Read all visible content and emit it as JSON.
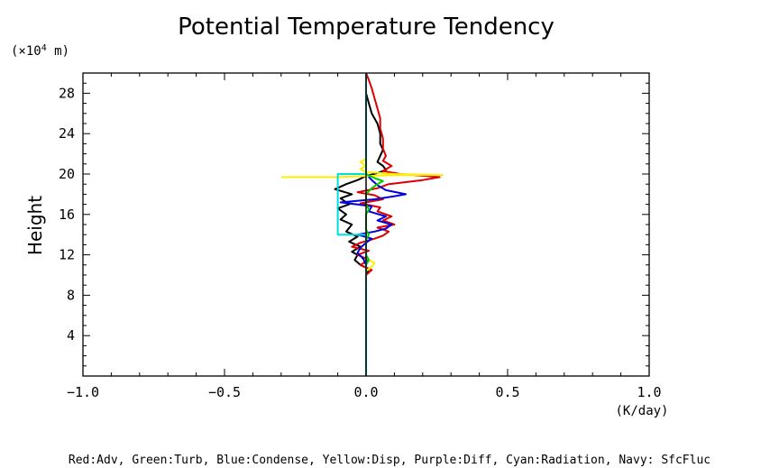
{
  "chart_data": {
    "type": "line",
    "title": "Potential Temperature Tendency",
    "xlabel": "",
    "ylabel": "Height",
    "x_unit": "(K/day)",
    "y_unit_prefix": "(×10",
    "y_unit_exp": "4",
    "y_unit_suffix": " m)",
    "xlim": [
      -1.0,
      1.0
    ],
    "ylim": [
      0,
      30
    ],
    "x_ticks": [
      -1.0,
      -0.5,
      0.0,
      0.5,
      1.0
    ],
    "x_tick_labels": [
      "−1.0",
      "−0.5",
      "0.0",
      "0.5",
      "1.0"
    ],
    "y_ticks": [
      4,
      8,
      12,
      16,
      20,
      24,
      28
    ],
    "y_tick_labels": [
      "4",
      "8",
      "12",
      "16",
      "20",
      "24",
      "28"
    ],
    "grid": false,
    "legend_note": "Red:Adv, Green:Turb, Blue:Condense, Yellow:Disp, Purple:Diff, Cyan:Radiation, Navy: SfcFluc",
    "zero_line_x": 0.0,
    "series": [
      {
        "color": "#000000",
        "points": [
          [
            0,
            0
          ],
          [
            0,
            10
          ],
          [
            0.01,
            10.6
          ],
          [
            -0.02,
            11.0
          ],
          [
            -0.04,
            11.5
          ],
          [
            -0.03,
            12.0
          ],
          [
            -0.05,
            12.3
          ],
          [
            -0.02,
            12.8
          ],
          [
            -0.06,
            13.3
          ],
          [
            -0.03,
            13.8
          ],
          [
            -0.07,
            14.3
          ],
          [
            -0.05,
            15.0
          ],
          [
            -0.09,
            15.5
          ],
          [
            -0.07,
            16.0
          ],
          [
            -0.1,
            16.6
          ],
          [
            -0.06,
            17.0
          ],
          [
            -0.09,
            17.6
          ],
          [
            -0.05,
            18.0
          ],
          [
            -0.11,
            18.5
          ],
          [
            -0.07,
            19.0
          ],
          [
            -0.03,
            19.4
          ],
          [
            0.0,
            19.8
          ],
          [
            0.04,
            20.1
          ],
          [
            0.07,
            20.4
          ],
          [
            0.06,
            20.8
          ],
          [
            0.04,
            21.2
          ],
          [
            0.05,
            21.8
          ],
          [
            0.06,
            22.4
          ],
          [
            0.05,
            23.0
          ],
          [
            0.05,
            24.0
          ],
          [
            0.04,
            25.0
          ],
          [
            0.02,
            26.0
          ],
          [
            0.01,
            27.0
          ],
          [
            0.0,
            28.0
          ],
          [
            0,
            30
          ]
        ]
      },
      {
        "color": "#dd0000",
        "points": [
          [
            0,
            0
          ],
          [
            0,
            10
          ],
          [
            0.02,
            10.5
          ],
          [
            -0.02,
            11.0
          ],
          [
            0.01,
            11.5
          ],
          [
            -0.03,
            12.0
          ],
          [
            0.01,
            12.4
          ],
          [
            -0.05,
            12.8
          ],
          [
            -0.02,
            13.2
          ],
          [
            0.03,
            13.6
          ],
          [
            0.06,
            13.9
          ],
          [
            0.08,
            14.3
          ],
          [
            0.04,
            14.7
          ],
          [
            0.1,
            15.0
          ],
          [
            0.06,
            15.4
          ],
          [
            0.09,
            15.8
          ],
          [
            0.04,
            16.3
          ],
          [
            0.05,
            16.7
          ],
          [
            -0.02,
            17.1
          ],
          [
            0.06,
            17.5
          ],
          [
            0.03,
            17.9
          ],
          [
            -0.03,
            18.2
          ],
          [
            0.04,
            18.6
          ],
          [
            0.08,
            19.0
          ],
          [
            0.2,
            19.4
          ],
          [
            0.26,
            19.7
          ],
          [
            0.12,
            20.0
          ],
          [
            0.06,
            20.3
          ],
          [
            0.09,
            20.8
          ],
          [
            0.06,
            21.3
          ],
          [
            0.07,
            21.8
          ],
          [
            0.06,
            22.5
          ],
          [
            0.06,
            23.5
          ],
          [
            0.05,
            24.5
          ],
          [
            0.05,
            25.5
          ],
          [
            0.04,
            26.5
          ],
          [
            0.03,
            27.5
          ],
          [
            0.02,
            28.5
          ],
          [
            0.01,
            29.3
          ],
          [
            0,
            30
          ]
        ]
      },
      {
        "color": "#0000dd",
        "points": [
          [
            0,
            0
          ],
          [
            0,
            10
          ],
          [
            0.0,
            11.0
          ],
          [
            -0.01,
            11.6
          ],
          [
            -0.03,
            12.2
          ],
          [
            -0.02,
            12.7
          ],
          [
            0.0,
            13.2
          ],
          [
            0.02,
            13.6
          ],
          [
            -0.03,
            14.0
          ],
          [
            0.03,
            14.3
          ],
          [
            0.07,
            14.6
          ],
          [
            0.09,
            15.0
          ],
          [
            0.04,
            15.4
          ],
          [
            0.07,
            15.8
          ],
          [
            0.01,
            16.3
          ],
          [
            0.02,
            16.8
          ],
          [
            -0.09,
            17.2
          ],
          [
            0.03,
            17.5
          ],
          [
            0.1,
            17.8
          ],
          [
            0.14,
            18.0
          ],
          [
            0.07,
            18.4
          ],
          [
            0.04,
            18.9
          ],
          [
            0.02,
            19.4
          ],
          [
            0.0,
            20.0
          ],
          [
            0,
            30
          ]
        ]
      },
      {
        "color": "#ffee00",
        "points": [
          [
            -0.3,
            19.7
          ],
          [
            -0.1,
            19.7
          ],
          [
            0.0,
            19.8
          ],
          [
            0.1,
            19.9
          ],
          [
            0.27,
            19.9
          ],
          [
            0.1,
            20.0
          ],
          [
            0.0,
            20.2
          ],
          [
            -0.02,
            20.5
          ],
          [
            0.0,
            20.8
          ],
          [
            -0.02,
            21.2
          ],
          [
            0.0,
            21.5
          ]
        ]
      },
      {
        "color": "#ffee00",
        "points": [
          [
            0,
            10.4
          ],
          [
            0.02,
            10.8
          ],
          [
            0.03,
            11.2
          ],
          [
            0.01,
            11.5
          ],
          [
            0,
            11.8
          ]
        ]
      },
      {
        "color": "#00cc00",
        "points": [
          [
            0,
            0
          ],
          [
            0,
            10
          ],
          [
            0.0,
            11.0
          ],
          [
            0.01,
            11.5
          ],
          [
            0,
            12
          ],
          [
            0,
            13.5
          ],
          [
            0.01,
            14.0
          ],
          [
            0,
            14.5
          ],
          [
            0,
            16.0
          ],
          [
            0.01,
            16.5
          ],
          [
            0,
            17.0
          ],
          [
            0,
            18.0
          ],
          [
            0.02,
            18.6
          ],
          [
            0.04,
            19.0
          ],
          [
            0.06,
            19.3
          ],
          [
            0.03,
            19.6
          ],
          [
            0.0,
            20.0
          ],
          [
            0,
            30
          ]
        ]
      },
      {
        "color": "#00dddd",
        "points": [
          [
            0,
            0
          ],
          [
            0,
            14.0
          ],
          [
            -0.1,
            14.0
          ],
          [
            -0.1,
            20.0
          ],
          [
            0,
            20.0
          ],
          [
            0,
            30
          ]
        ]
      }
    ]
  }
}
